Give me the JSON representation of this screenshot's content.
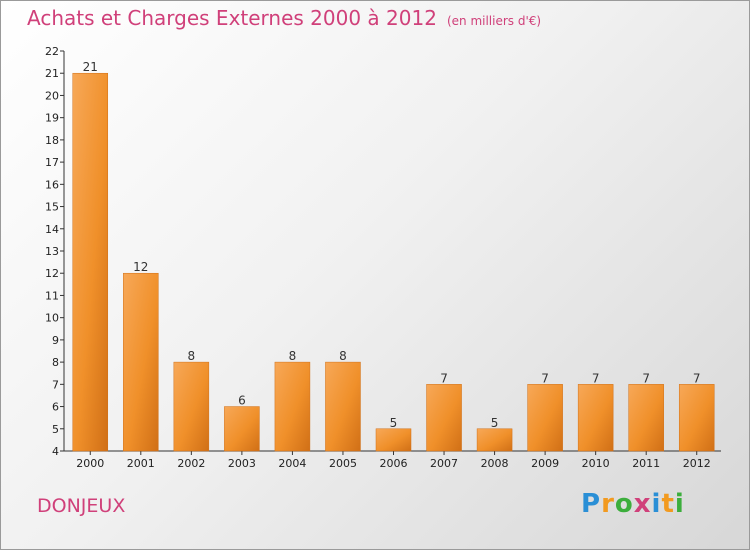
{
  "header": {
    "title": "Achats et Charges Externes 2000 à 2012",
    "subtitle": "(en milliers d'€)"
  },
  "footer": {
    "place": "DONJEUX",
    "logo": "Proxiti",
    "logo_letters": [
      "P",
      "r",
      "o",
      "x",
      "i",
      "t",
      "i"
    ],
    "logo_colors": [
      "#2a8fd6",
      "#f29a1f",
      "#3cae3c",
      "#d0407a",
      "#2a8fd6",
      "#f29a1f",
      "#3cae3c"
    ]
  },
  "colors": {
    "bar": "#f0902a",
    "bar_light": "#f7a858",
    "bar_dark": "#d06f16",
    "title": "#d0407a"
  },
  "chart_data": {
    "type": "bar",
    "title": "Achats et Charges Externes 2000 à 2012",
    "subtitle": "(en milliers d'€)",
    "categories": [
      "2000",
      "2001",
      "2002",
      "2003",
      "2004",
      "2005",
      "2006",
      "2007",
      "2008",
      "2009",
      "2010",
      "2011",
      "2012"
    ],
    "values": [
      21,
      12,
      8,
      6,
      8,
      8,
      5,
      7,
      5,
      7,
      7,
      7,
      7
    ],
    "ylim": [
      4,
      22
    ],
    "yticks": [
      4,
      5,
      6,
      7,
      8,
      9,
      10,
      11,
      12,
      13,
      14,
      15,
      16,
      17,
      18,
      19,
      20,
      21,
      22
    ],
    "grid": false,
    "legend": "none"
  }
}
